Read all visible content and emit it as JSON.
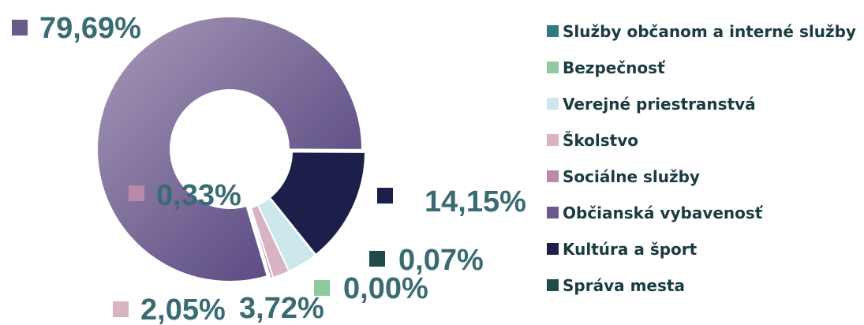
{
  "chart_data": {
    "type": "donut",
    "categories": [
      "Služby občanom a interné služby",
      "Bezpečnosť",
      "Verejné priestranstvá",
      "Školstvo",
      "Sociálne služby",
      "Občianská vybavenosť",
      "Kultúra a šport",
      "Správa mesta"
    ],
    "values": [
      0,
      0,
      3.72,
      2.05,
      0.33,
      79.69,
      14.15,
      0.07
    ],
    "value_labels": [
      null,
      "0,00%",
      "3,72%",
      "2,05%",
      "0,33%",
      "79,69%",
      "14,15%",
      "0,07%"
    ],
    "colors": [
      "#2e7b7f",
      "#8fc9a0",
      "#cde8ec",
      "#d8b4c2",
      "#b88aa8",
      "#6a5a8c",
      "#1c1f4a",
      "#1e4b4b"
    ],
    "legend": "right"
  }
}
